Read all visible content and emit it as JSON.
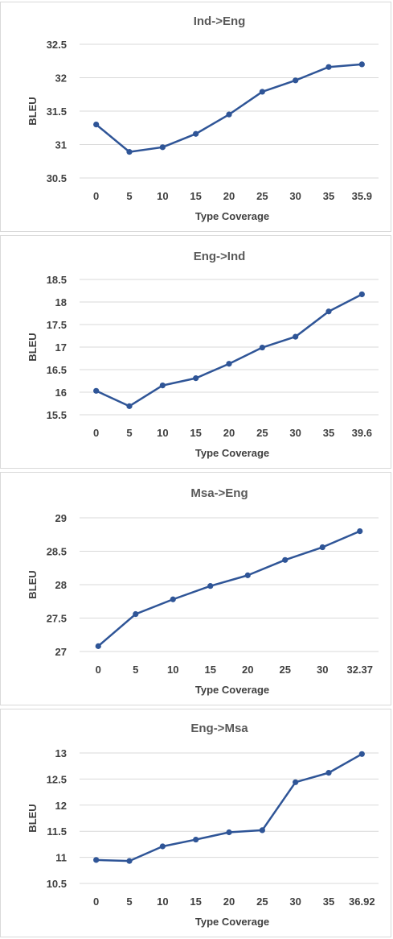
{
  "chart_data": [
    {
      "type": "line",
      "title": "Ind->Eng",
      "xlabel": "Type Coverage",
      "ylabel": "BLEU",
      "categories": [
        "0",
        "5",
        "10",
        "15",
        "20",
        "25",
        "30",
        "35",
        "35.9"
      ],
      "values": [
        31.3,
        30.89,
        30.96,
        31.16,
        31.45,
        31.79,
        31.96,
        32.16,
        32.2
      ],
      "yticks": [
        "30.5",
        "31",
        "31.5",
        "32",
        "32.5"
      ],
      "ylim": [
        30.5,
        32.5
      ],
      "grid": true,
      "color": "#2f5597"
    },
    {
      "type": "line",
      "title": "Eng->Ind",
      "xlabel": "Type Coverage",
      "ylabel": "BLEU",
      "categories": [
        "0",
        "5",
        "10",
        "15",
        "20",
        "25",
        "30",
        "35",
        "39.6"
      ],
      "values": [
        16.03,
        15.69,
        16.15,
        16.31,
        16.63,
        16.99,
        17.23,
        17.79,
        18.17
      ],
      "yticks": [
        "15.5",
        "16",
        "16.5",
        "17",
        "17.5",
        "18",
        "18.5"
      ],
      "ylim": [
        15.5,
        18.5
      ],
      "grid": true,
      "color": "#2f5597"
    },
    {
      "type": "line",
      "title": "Msa->Eng",
      "xlabel": "Type Coverage",
      "ylabel": "BLEU",
      "categories": [
        "0",
        "5",
        "10",
        "15",
        "20",
        "25",
        "30",
        "32.37"
      ],
      "values": [
        27.08,
        27.56,
        27.78,
        27.98,
        28.14,
        28.37,
        28.56,
        28.8
      ],
      "yticks": [
        "27",
        "27.5",
        "28",
        "28.5",
        "29"
      ],
      "ylim": [
        27,
        29
      ],
      "grid": true,
      "color": "#2f5597"
    },
    {
      "type": "line",
      "title": "Eng->Msa",
      "xlabel": "Type Coverage",
      "ylabel": "BLEU",
      "categories": [
        "0",
        "5",
        "10",
        "15",
        "20",
        "25",
        "30",
        "35",
        "36.92"
      ],
      "values": [
        10.95,
        10.93,
        11.21,
        11.34,
        11.48,
        11.52,
        12.44,
        12.62,
        12.98
      ],
      "yticks": [
        "10.5",
        "11",
        "11.5",
        "12",
        "12.5",
        "13"
      ],
      "ylim": [
        10.5,
        13
      ],
      "grid": true,
      "color": "#2f5597"
    }
  ]
}
